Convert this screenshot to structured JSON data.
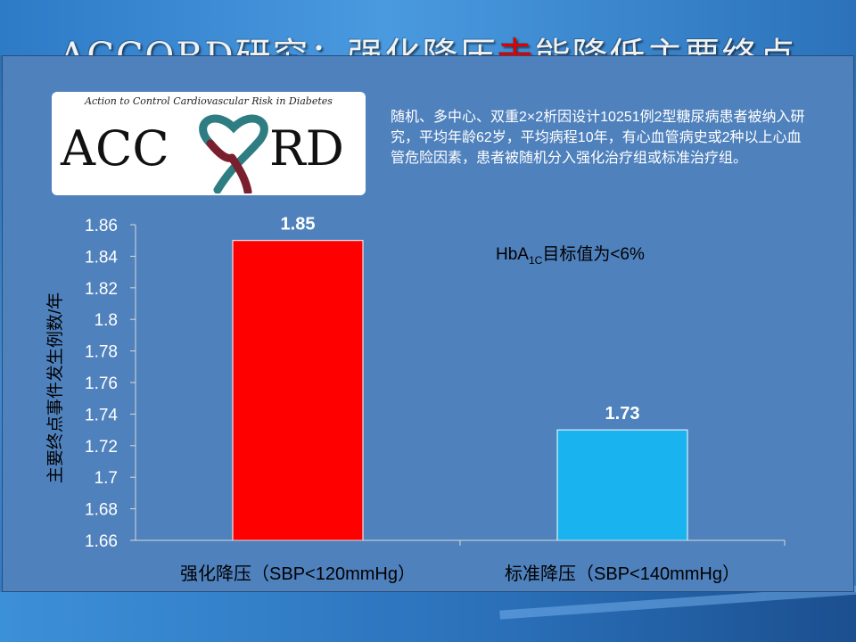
{
  "slide": {
    "title_part1": "ACCORD研究：强化降压",
    "title_highlight": "未",
    "title_part2": "能降低主要终点",
    "description": "随机、多中心、双重2×2析因设计10251例2型糖尿病患者被纳入研究，平均年龄62岁，平均病程10年，有心血管病史或2种以上心血管危险因素，患者被随机分入强化治疗组或标准治疗组。",
    "note_main": "HbA",
    "note_sub": "1C",
    "note_tail": "目标值为<6%"
  },
  "logo": {
    "tagline": "Action to Control Cardiovascular Risk in Diabetes",
    "wordmark": "ACCORD",
    "colors": {
      "teal": "#2e7d82",
      "maroon": "#7a1f2e"
    }
  },
  "chart_data": {
    "type": "bar",
    "categories": [
      "强化降压（SBP<120mmHg）",
      "标准降压（SBP<140mmHg）"
    ],
    "values": [
      1.85,
      1.73
    ],
    "value_labels": [
      "1.85",
      "1.73"
    ],
    "colors": [
      "#ff0000",
      "#19b3f0"
    ],
    "ylabel": "主要终点事件发生例数/年",
    "ylim": [
      1.66,
      1.86
    ],
    "yticks": [
      1.66,
      1.68,
      1.7,
      1.72,
      1.74,
      1.76,
      1.78,
      1.8,
      1.82,
      1.84,
      1.86
    ],
    "ytick_labels": [
      "1.66",
      "1.68",
      "1.7",
      "1.72",
      "1.74",
      "1.76",
      "1.78",
      "1.8",
      "1.82",
      "1.84",
      "1.86"
    ],
    "grid": false,
    "legend": "none"
  }
}
